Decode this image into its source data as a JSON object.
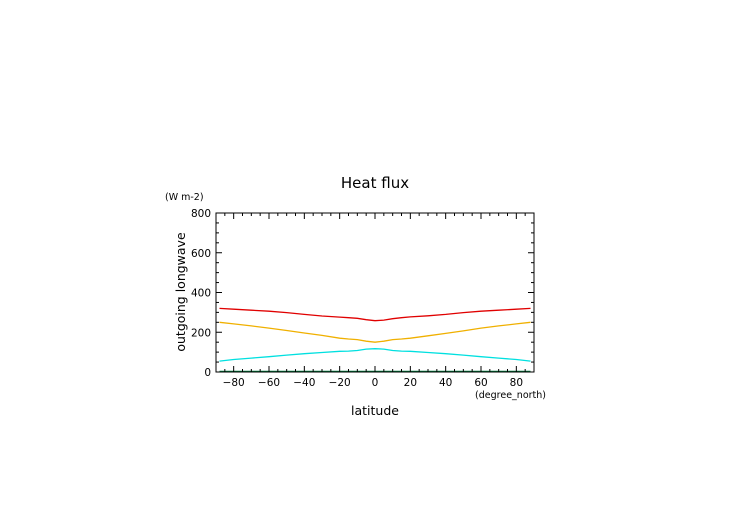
{
  "chart_data": {
    "type": "line",
    "title": "Heat flux",
    "xlabel": "latitude",
    "xunits": "(degree_north)",
    "ylabel": "outgoing longwave",
    "yunits": "(W m-2)",
    "xlim": [
      -90,
      90
    ],
    "ylim": [
      0,
      800
    ],
    "xticks": [
      -80,
      -60,
      -40,
      -20,
      0,
      20,
      40,
      60,
      80
    ],
    "yticks": [
      0,
      200,
      400,
      600,
      800
    ],
    "grid": false,
    "x": [
      -88,
      -80,
      -70,
      -60,
      -50,
      -40,
      -30,
      -20,
      -15,
      -10,
      -5,
      0,
      5,
      10,
      15,
      20,
      30,
      40,
      50,
      60,
      70,
      80,
      88
    ],
    "series": [
      {
        "color": "#e00000",
        "values": [
          320,
          316,
          311,
          306,
          299,
          290,
          282,
          276,
          273,
          270,
          263,
          258,
          261,
          268,
          273,
          277,
          283,
          290,
          299,
          306,
          311,
          316,
          320
        ]
      },
      {
        "color": "#f0b000",
        "values": [
          250,
          242,
          232,
          221,
          209,
          196,
          184,
          170,
          166,
          163,
          155,
          150,
          155,
          163,
          166,
          170,
          182,
          194,
          207,
          221,
          232,
          242,
          250
        ]
      },
      {
        "color": "#00e0e0",
        "values": [
          55,
          63,
          70,
          77,
          85,
          92,
          98,
          104,
          105,
          108,
          115,
          117,
          115,
          108,
          105,
          104,
          98,
          92,
          85,
          77,
          70,
          63,
          55
        ]
      },
      {
        "color": "#008040",
        "values": [
          3,
          3,
          3,
          3,
          3,
          3,
          3,
          3,
          3,
          3,
          3,
          3,
          3,
          3,
          3,
          3,
          3,
          3,
          3,
          3,
          3,
          3,
          3
        ]
      }
    ]
  }
}
